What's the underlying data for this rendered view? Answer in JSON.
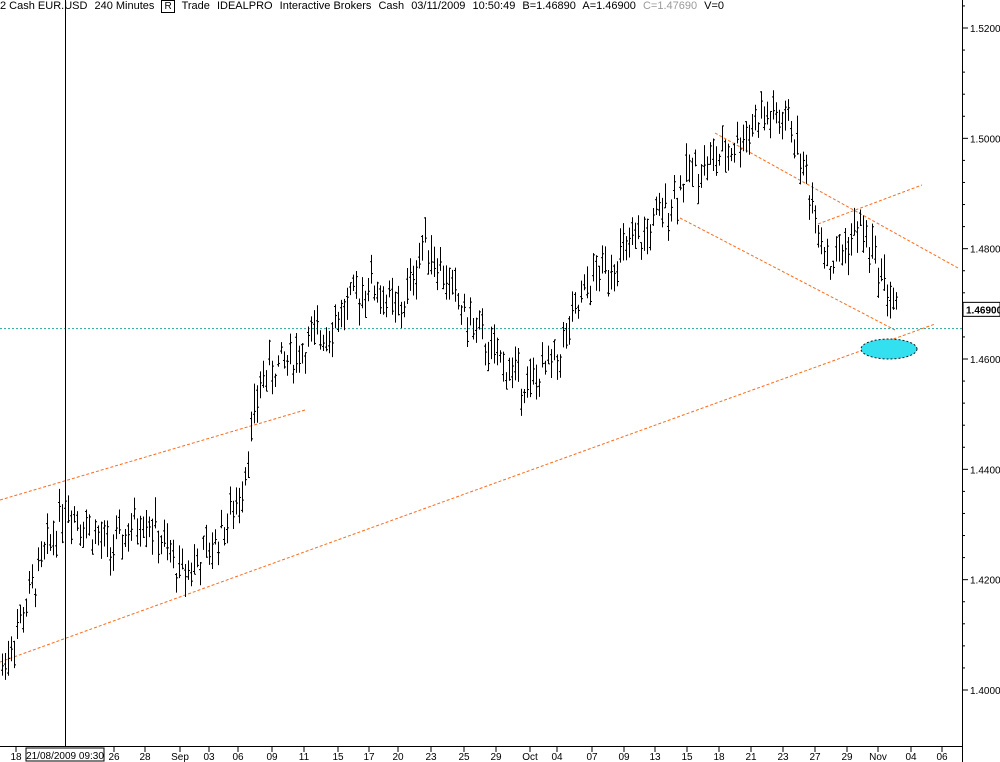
{
  "header": {
    "symbol": "2 Cash EUR.USD",
    "interval": "240 Minutes",
    "rbox": "R",
    "type": "Trade",
    "exchange": "IDEALPRO",
    "broker": "Interactive Brokers",
    "asset": "Cash",
    "date": "03/11/2009",
    "time": "10:50:49",
    "bid": "B=1.46890",
    "ask": "A=1.46900",
    "close": "C=1.47690",
    "volume": "V=0"
  },
  "cursor_label": "21/08/2009 09:30",
  "current_price_label": "1.46900",
  "colors": {
    "bars": "#000000",
    "trendline": "#ff6a1a",
    "support_line": "#2aa39a",
    "highlight": "#33e0f0"
  },
  "chart_data": {
    "type": "ohlc",
    "title": "",
    "ylim": [
      1.394,
      1.525
    ],
    "y_ticks": [
      "1.40000",
      "1.42000",
      "1.44000",
      "1.46000",
      "1.48000",
      "1.50000",
      "1.52000"
    ],
    "x_ticks": [
      "18",
      "26",
      "28",
      "Sep",
      "03",
      "06",
      "09",
      "11",
      "15",
      "17",
      "20",
      "23",
      "25",
      "29",
      "Oct",
      "04",
      "07",
      "09",
      "13",
      "15",
      "18",
      "21",
      "23",
      "27",
      "29",
      "Nov",
      "04",
      "06"
    ],
    "approx_close_path": [
      {
        "x": "18",
        "y": 1.404
      },
      {
        "x": "21/08",
        "y": 1.434
      },
      {
        "x": "26",
        "y": 1.425
      },
      {
        "x": "28",
        "y": 1.432
      },
      {
        "x": "Sep",
        "y": 1.421
      },
      {
        "x": "03",
        "y": 1.425
      },
      {
        "x": "06",
        "y": 1.434
      },
      {
        "x": "09",
        "y": 1.457
      },
      {
        "x": "11",
        "y": 1.46
      },
      {
        "x": "15",
        "y": 1.466
      },
      {
        "x": "17",
        "y": 1.474
      },
      {
        "x": "20",
        "y": 1.468
      },
      {
        "x": "23",
        "y": 1.482
      },
      {
        "x": "25",
        "y": 1.468
      },
      {
        "x": "29",
        "y": 1.46
      },
      {
        "x": "Oct",
        "y": 1.455
      },
      {
        "x": "04",
        "y": 1.46
      },
      {
        "x": "07",
        "y": 1.474
      },
      {
        "x": "09",
        "y": 1.478
      },
      {
        "x": "13",
        "y": 1.482
      },
      {
        "x": "15",
        "y": 1.494
      },
      {
        "x": "18",
        "y": 1.497
      },
      {
        "x": "21",
        "y": 1.504
      },
      {
        "x": "23",
        "y": 1.503
      },
      {
        "x": "27",
        "y": 1.477
      },
      {
        "x": "29",
        "y": 1.484
      },
      {
        "x": "Nov",
        "y": 1.478
      },
      {
        "x": "04",
        "y": 1.469
      }
    ],
    "last_price": 1.469,
    "horizontal_line": 1.4655,
    "grid": false,
    "legend": "none"
  }
}
